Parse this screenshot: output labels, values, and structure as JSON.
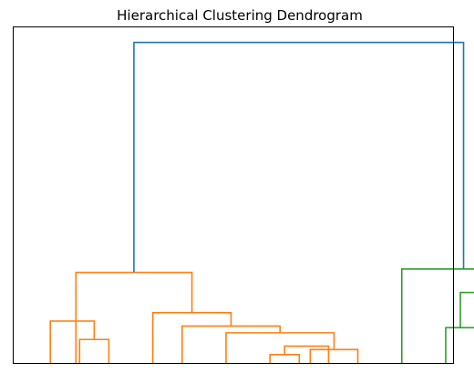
{
  "chart_data": {
    "type": "dendrogram",
    "title": "Hierarchical Clustering Dendrogram",
    "xlabel": "",
    "ylabel": "",
    "leaf_count": 30,
    "ylim": [
      0,
      100
    ],
    "show_ticks": false,
    "grid": false,
    "colors": {
      "above_threshold": "#1f77b4",
      "cluster_1": "#ff7f0e",
      "cluster_2": "#2ca02c"
    },
    "links": [
      {
        "left": 4,
        "right": 6,
        "height": 7,
        "color": "cluster_1"
      },
      {
        "left": 2,
        "right": 5,
        "height": 12.5,
        "color": "cluster_1"
      },
      {
        "left": 17,
        "right": 19,
        "height": 2.5,
        "color": "cluster_1"
      },
      {
        "left": 18,
        "right": 21,
        "height": 5,
        "color": "cluster_1"
      },
      {
        "left": 19.75,
        "right": 23,
        "height": 4,
        "color": "cluster_1"
      },
      {
        "left": 14,
        "right": 21.375,
        "height": 9,
        "color": "cluster_1"
      },
      {
        "left": 11,
        "right": 17.6875,
        "height": 11,
        "color": "cluster_1"
      },
      {
        "left": 9,
        "right": 14.34375,
        "height": 15,
        "color": "cluster_1"
      },
      {
        "left": 3.75,
        "right": 11.671875,
        "height": 27,
        "color": "cluster_1"
      },
      {
        "left": 29,
        "right": 31,
        "height": 10.5,
        "color": "cluster_2"
      },
      {
        "left": 34,
        "right": 36,
        "height": 9.5,
        "color": "cluster_2"
      },
      {
        "left": 39,
        "right": 41,
        "height": 4.5,
        "color": "cluster_2"
      },
      {
        "left": 44,
        "right": 47,
        "height": 6,
        "color": "cluster_2"
      },
      {
        "left": 46,
        "right": 48,
        "height": 3.5,
        "color": "cluster_2"
      },
      {
        "left": 40,
        "right": 45.5,
        "height": 12.5,
        "color": "cluster_2"
      },
      {
        "left": 35,
        "right": 42.75,
        "height": 14.5,
        "color": "cluster_2"
      },
      {
        "left": 30,
        "right": 38.875,
        "height": 21,
        "color": "cluster_2"
      },
      {
        "left": 26,
        "right": 34.4375,
        "height": 28,
        "color": "cluster_2"
      },
      {
        "left": 7.7109375,
        "right": 30.21875,
        "height": 95.5,
        "color": "above_threshold"
      }
    ]
  }
}
